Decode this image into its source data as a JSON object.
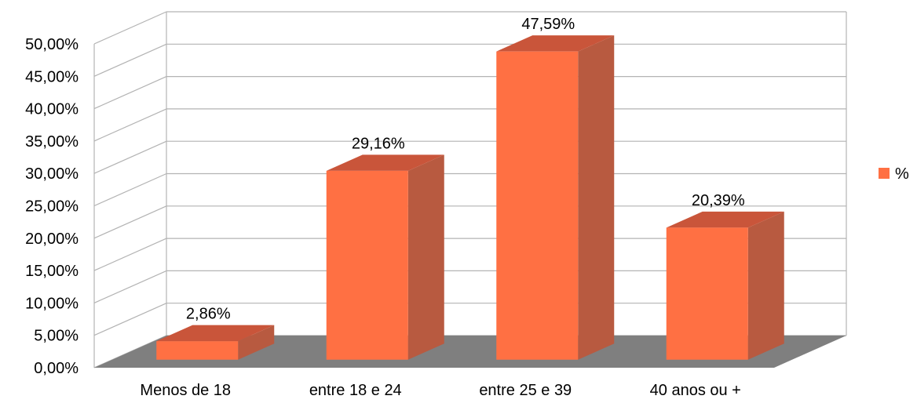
{
  "chart_data": {
    "type": "bar",
    "categories": [
      "Menos de 18",
      "entre 18 e 24",
      "entre 25 e 39",
      "40 anos ou +"
    ],
    "series": [
      {
        "name": "%",
        "values": [
          2.86,
          29.16,
          47.59,
          20.39
        ]
      }
    ],
    "data_labels": [
      "2,86%",
      "29,16%",
      "47,59%",
      "20,39%"
    ],
    "y_tick_labels": [
      "0,00%",
      "5,00%",
      "10,00%",
      "15,00%",
      "20,00%",
      "25,00%",
      "30,00%",
      "35,00%",
      "40,00%",
      "45,00%",
      "50,00%"
    ],
    "ylim": [
      0,
      50
    ],
    "title": "",
    "xlabel": "",
    "ylabel": "",
    "grid": true,
    "legend_position": "right",
    "style": "3d-column"
  },
  "legend": {
    "label": "%"
  },
  "colors": {
    "bar_front": "#ff7043",
    "bar_side": "#b85a40",
    "bar_top": "#c9553a",
    "floor": "#7f7f7f",
    "grid": "#b3b3b3"
  }
}
